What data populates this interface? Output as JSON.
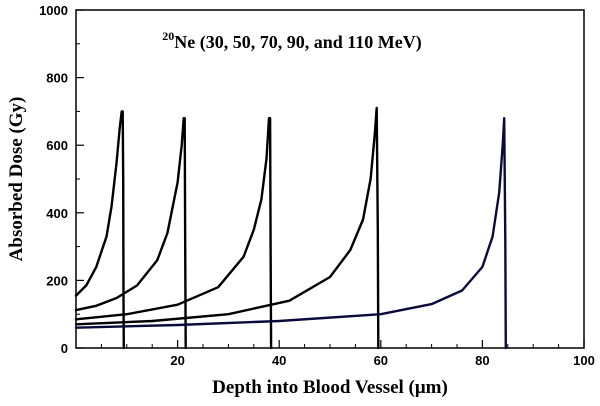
{
  "chart_data": {
    "type": "line",
    "title_superscript": "20",
    "title": "Ne (30, 50, 70, 90, and 110 MeV)",
    "xlabel": "Depth into Blood Vessel (μm)",
    "ylabel": "Absorbed Dose (Gy)",
    "xlim": [
      0,
      100
    ],
    "ylim": [
      0,
      1000
    ],
    "x_ticks": [
      20,
      40,
      60,
      80,
      100
    ],
    "y_ticks": [
      0,
      200,
      400,
      600,
      800,
      1000
    ],
    "x_minor_step": 5,
    "y_minor_step": 100,
    "grid": false,
    "series": [
      {
        "color": "#000000",
        "x": [
          0,
          2,
          4,
          6,
          7,
          8,
          8.6,
          9.0,
          9.2,
          9.3,
          9.35,
          9.4
        ],
        "y": [
          155,
          185,
          240,
          330,
          420,
          550,
          650,
          700,
          700,
          500,
          150,
          0
        ]
      },
      {
        "color": "#000000",
        "x": [
          0,
          4,
          8,
          12,
          16,
          18,
          20,
          20.8,
          21.2,
          21.4,
          21.5,
          21.6
        ],
        "y": [
          112,
          125,
          148,
          185,
          260,
          340,
          490,
          600,
          680,
          680,
          300,
          0
        ]
      },
      {
        "color": "#000000",
        "x": [
          0,
          10,
          20,
          28,
          33,
          35,
          36.5,
          37.5,
          38.0,
          38.2,
          38.3,
          38.4
        ],
        "y": [
          85,
          100,
          128,
          180,
          270,
          350,
          440,
          560,
          680,
          680,
          300,
          0
        ]
      },
      {
        "color": "#000000",
        "x": [
          0,
          15,
          30,
          42,
          50,
          54,
          56.5,
          58,
          58.8,
          59.2,
          59.4,
          59.5
        ],
        "y": [
          70,
          80,
          100,
          140,
          210,
          290,
          380,
          500,
          630,
          710,
          350,
          0
        ]
      },
      {
        "color": "#0a0a3c",
        "x": [
          0,
          20,
          40,
          60,
          70,
          76,
          80,
          82,
          83.3,
          84.0,
          84.3,
          84.5,
          84.6
        ],
        "y": [
          60,
          68,
          80,
          100,
          130,
          170,
          240,
          330,
          460,
          600,
          680,
          320,
          0
        ]
      }
    ]
  }
}
